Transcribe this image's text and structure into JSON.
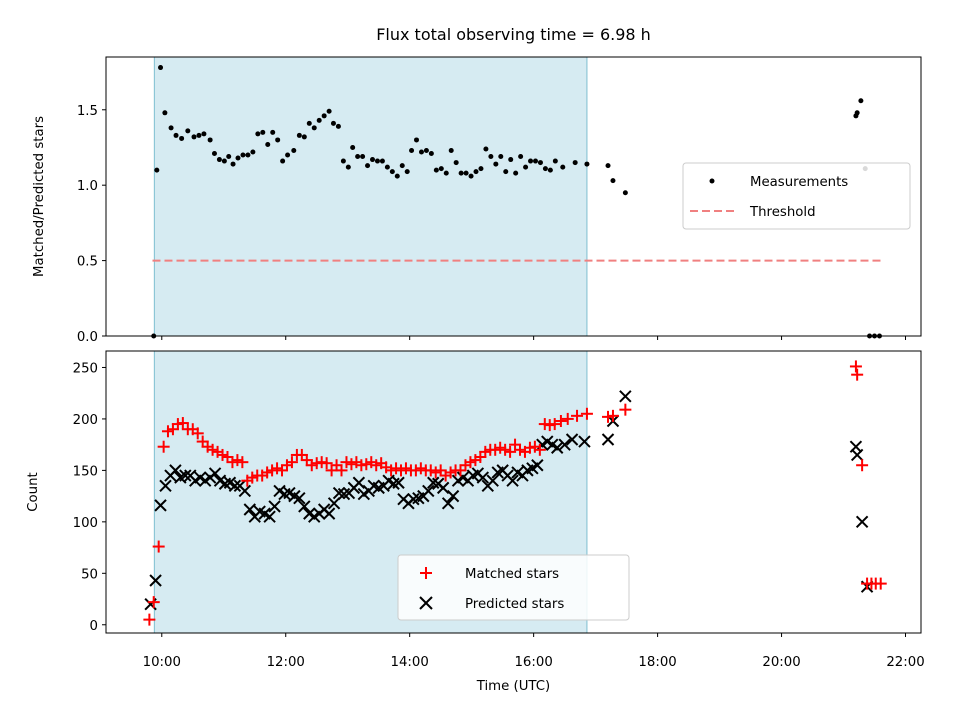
{
  "chart_data": [
    {
      "type": "scatter",
      "title": "Flux total observing time = 6.98 h",
      "xlabel": "",
      "ylabel": "Matched/Predicted stars",
      "xlim": [
        9.1,
        22.25
      ],
      "ylim": [
        0,
        1.85
      ],
      "yticks": [
        0,
        0.5,
        1.0,
        1.5
      ],
      "ytick_labels": [
        "0.0",
        "0.5",
        "1.0",
        "1.5"
      ],
      "xticks": [
        10,
        12,
        14,
        16,
        18,
        20,
        22
      ],
      "shaded_span": {
        "x_start": 9.88,
        "x_end": 16.86,
        "color": "#add8e6"
      },
      "threshold": {
        "value": 0.5,
        "x_start": 9.85,
        "x_end": 21.65,
        "color": "#f08080",
        "label": "Threshold"
      },
      "legend": {
        "position": "center-right",
        "entries": [
          "Measurements",
          "Threshold"
        ]
      },
      "series": [
        {
          "name": "Measurements",
          "color": "#000000",
          "x": [
            9.87,
            9.92,
            9.98,
            10.05,
            10.15,
            10.23,
            10.32,
            10.42,
            10.52,
            10.6,
            10.68,
            10.78,
            10.85,
            10.93,
            11.01,
            11.08,
            11.15,
            11.23,
            11.31,
            11.39,
            11.47,
            11.55,
            11.63,
            11.71,
            11.79,
            11.87,
            11.95,
            12.03,
            12.13,
            12.22,
            12.3,
            12.38,
            12.46,
            12.54,
            12.62,
            12.7,
            12.77,
            12.85,
            12.93,
            13.01,
            13.08,
            13.16,
            13.24,
            13.32,
            13.4,
            13.48,
            13.56,
            13.64,
            13.72,
            13.8,
            13.88,
            13.96,
            14.03,
            14.11,
            14.19,
            14.27,
            14.35,
            14.43,
            14.51,
            14.59,
            14.67,
            14.75,
            14.83,
            14.91,
            14.99,
            15.07,
            15.15,
            15.23,
            15.31,
            15.39,
            15.47,
            15.55,
            15.63,
            15.71,
            15.79,
            15.87,
            15.95,
            16.03,
            16.11,
            16.19,
            16.27,
            16.35,
            16.47,
            16.67,
            16.86,
            17.2,
            17.28,
            17.48,
            21.2,
            21.22,
            21.28,
            21.35,
            21.42,
            21.5,
            21.58
          ],
          "y": [
            0.0,
            1.1,
            1.78,
            1.48,
            1.38,
            1.33,
            1.31,
            1.36,
            1.32,
            1.33,
            1.34,
            1.3,
            1.21,
            1.17,
            1.16,
            1.19,
            1.14,
            1.18,
            1.2,
            1.2,
            1.22,
            1.34,
            1.35,
            1.27,
            1.35,
            1.3,
            1.16,
            1.2,
            1.23,
            1.33,
            1.32,
            1.41,
            1.38,
            1.43,
            1.46,
            1.49,
            1.41,
            1.39,
            1.16,
            1.12,
            1.25,
            1.19,
            1.19,
            1.13,
            1.17,
            1.16,
            1.16,
            1.12,
            1.09,
            1.06,
            1.13,
            1.09,
            1.23,
            1.3,
            1.22,
            1.23,
            1.21,
            1.1,
            1.11,
            1.08,
            1.23,
            1.15,
            1.08,
            1.08,
            1.06,
            1.09,
            1.11,
            1.24,
            1.19,
            1.14,
            1.19,
            1.09,
            1.17,
            1.08,
            1.19,
            1.12,
            1.16,
            1.16,
            1.15,
            1.11,
            1.1,
            1.16,
            1.12,
            1.15,
            1.14,
            1.13,
            1.03,
            0.95,
            1.46,
            1.48,
            1.56,
            1.11,
            0.0,
            0.0,
            0.0
          ]
        }
      ]
    },
    {
      "type": "scatter",
      "title": "",
      "xlabel": "Time (UTC)",
      "ylabel": "Count",
      "xlim": [
        9.1,
        22.25
      ],
      "ylim": [
        -8,
        266
      ],
      "yticks": [
        0,
        50,
        100,
        150,
        200,
        250
      ],
      "ytick_labels": [
        "0",
        "50",
        "100",
        "150",
        "200",
        "250"
      ],
      "xticks": [
        10,
        12,
        14,
        16,
        18,
        20,
        22
      ],
      "xtick_labels": [
        "10:00",
        "12:00",
        "14:00",
        "16:00",
        "18:00",
        "20:00",
        "22:00"
      ],
      "shaded_span": {
        "x_start": 9.88,
        "x_end": 16.86,
        "color": "#add8e6"
      },
      "legend": {
        "position": "bottom-center",
        "entries": [
          "Matched stars",
          "Predicted stars"
        ]
      },
      "series": [
        {
          "name": "Matched stars",
          "marker": "+",
          "color": "#ff0000",
          "x": [
            9.8,
            9.87,
            9.95,
            10.03,
            10.1,
            10.18,
            10.26,
            10.34,
            10.42,
            10.5,
            10.58,
            10.66,
            10.74,
            10.82,
            10.9,
            10.98,
            11.06,
            11.14,
            11.22,
            11.3,
            11.38,
            11.46,
            11.54,
            11.62,
            11.7,
            11.78,
            11.86,
            11.94,
            12.02,
            12.1,
            12.18,
            12.26,
            12.34,
            12.42,
            12.5,
            12.58,
            12.66,
            12.74,
            12.82,
            12.9,
            12.98,
            13.06,
            13.14,
            13.22,
            13.3,
            13.38,
            13.46,
            13.54,
            13.62,
            13.7,
            13.78,
            13.86,
            13.94,
            14.02,
            14.1,
            14.18,
            14.26,
            14.34,
            14.42,
            14.5,
            14.58,
            14.66,
            14.74,
            14.82,
            14.9,
            14.98,
            15.06,
            15.14,
            15.22,
            15.3,
            15.38,
            15.46,
            15.54,
            15.62,
            15.7,
            15.78,
            15.86,
            15.94,
            16.02,
            16.1,
            16.18,
            16.26,
            16.34,
            16.44,
            16.55,
            16.7,
            16.86,
            17.2,
            17.28,
            17.48,
            21.2,
            21.22,
            21.3,
            21.38,
            21.45,
            21.52,
            21.6
          ],
          "y": [
            5,
            22,
            76,
            173,
            188,
            190,
            195,
            196,
            190,
            190,
            186,
            178,
            173,
            170,
            168,
            165,
            163,
            158,
            160,
            158,
            140,
            143,
            145,
            145,
            148,
            150,
            152,
            150,
            155,
            158,
            165,
            165,
            160,
            155,
            157,
            158,
            157,
            150,
            155,
            150,
            158,
            156,
            158,
            155,
            156,
            158,
            155,
            157,
            153,
            150,
            152,
            150,
            152,
            150,
            150,
            152,
            150,
            150,
            148,
            150,
            145,
            148,
            150,
            150,
            155,
            158,
            160,
            163,
            168,
            170,
            170,
            172,
            170,
            168,
            175,
            170,
            168,
            172,
            173,
            170,
            195,
            194,
            195,
            198,
            200,
            203,
            205,
            202,
            203,
            209,
            251,
            243,
            155,
            40,
            40,
            40,
            40
          ]
        },
        {
          "name": "Predicted stars",
          "marker": "x",
          "color": "#000000",
          "x": [
            9.82,
            9.9,
            9.98,
            10.06,
            10.14,
            10.22,
            10.3,
            10.38,
            10.46,
            10.54,
            10.62,
            10.7,
            10.78,
            10.86,
            10.94,
            11.02,
            11.1,
            11.18,
            11.26,
            11.34,
            11.42,
            11.5,
            11.58,
            11.66,
            11.74,
            11.82,
            11.9,
            11.98,
            12.06,
            12.14,
            12.22,
            12.3,
            12.38,
            12.46,
            12.54,
            12.62,
            12.7,
            12.78,
            12.86,
            12.94,
            13.02,
            13.1,
            13.18,
            13.26,
            13.34,
            13.42,
            13.5,
            13.58,
            13.66,
            13.74,
            13.82,
            13.9,
            13.98,
            14.06,
            14.14,
            14.22,
            14.3,
            14.38,
            14.46,
            14.54,
            14.62,
            14.7,
            14.78,
            14.86,
            14.94,
            15.02,
            15.1,
            15.18,
            15.26,
            15.34,
            15.42,
            15.5,
            15.58,
            15.66,
            15.74,
            15.82,
            15.9,
            15.98,
            16.06,
            16.14,
            16.22,
            16.3,
            16.38,
            16.5,
            16.62,
            16.82,
            17.2,
            17.28,
            17.48,
            21.2,
            21.22,
            21.3,
            21.38
          ],
          "y": [
            20,
            43,
            116,
            135,
            145,
            150,
            143,
            145,
            145,
            140,
            143,
            140,
            143,
            147,
            140,
            137,
            138,
            135,
            135,
            130,
            112,
            105,
            110,
            108,
            105,
            115,
            130,
            127,
            128,
            125,
            123,
            115,
            108,
            105,
            108,
            112,
            108,
            118,
            128,
            127,
            128,
            133,
            138,
            127,
            130,
            135,
            133,
            135,
            140,
            137,
            138,
            122,
            118,
            122,
            123,
            125,
            130,
            138,
            137,
            133,
            118,
            125,
            140,
            143,
            140,
            145,
            147,
            143,
            135,
            140,
            148,
            150,
            145,
            140,
            148,
            145,
            150,
            152,
            155,
            175,
            178,
            175,
            172,
            175,
            180,
            178,
            180,
            198,
            222,
            173,
            165,
            100,
            37
          ]
        }
      ]
    }
  ]
}
